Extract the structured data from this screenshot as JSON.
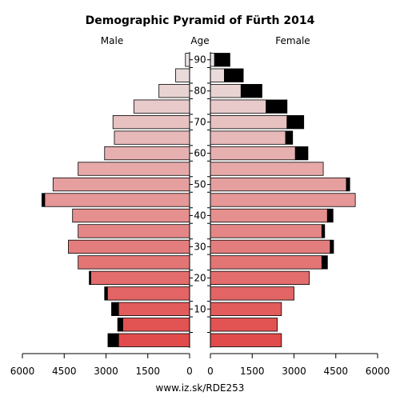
{
  "chart_data": {
    "type": "bar",
    "title": "Demographic Pyramid of Fürth 2014",
    "left_label": "Male",
    "center_label": "Age",
    "right_label": "Female",
    "footer": "www.iz.sk/RDE253",
    "age_groups": [
      "0-4",
      "5-9",
      "10-14",
      "15-19",
      "20-24",
      "25-29",
      "30-34",
      "35-39",
      "40-44",
      "45-49",
      "50-54",
      "55-59",
      "60-64",
      "65-69",
      "70-74",
      "75-79",
      "80-84",
      "85-89",
      "90+"
    ],
    "age_ticks": [
      10,
      20,
      30,
      40,
      50,
      60,
      70,
      80,
      90
    ],
    "xlim": [
      0,
      6000
    ],
    "x_ticks": [
      0,
      1500,
      3000,
      4500,
      6000
    ],
    "series": [
      {
        "name": "Male",
        "values": [
          2550,
          2400,
          2550,
          2950,
          3550,
          4000,
          4350,
          4000,
          4200,
          5200,
          4900,
          4000,
          3050,
          2700,
          2750,
          2000,
          1100,
          500,
          150
        ],
        "excess": [
          380,
          180,
          250,
          100,
          50,
          0,
          0,
          0,
          0,
          100,
          0,
          0,
          0,
          0,
          0,
          0,
          0,
          0,
          0
        ]
      },
      {
        "name": "Female",
        "values": [
          2550,
          2400,
          2550,
          3000,
          3550,
          4000,
          4300,
          4000,
          4200,
          5200,
          4880,
          4050,
          3050,
          2700,
          2750,
          2000,
          1100,
          500,
          150
        ],
        "excess": [
          0,
          0,
          0,
          0,
          0,
          200,
          120,
          100,
          200,
          0,
          120,
          0,
          450,
          250,
          600,
          750,
          750,
          680,
          550
        ]
      }
    ],
    "colors": {
      "young": "#e14b4b",
      "old": "#eae3e3",
      "excess": "#000000"
    }
  }
}
